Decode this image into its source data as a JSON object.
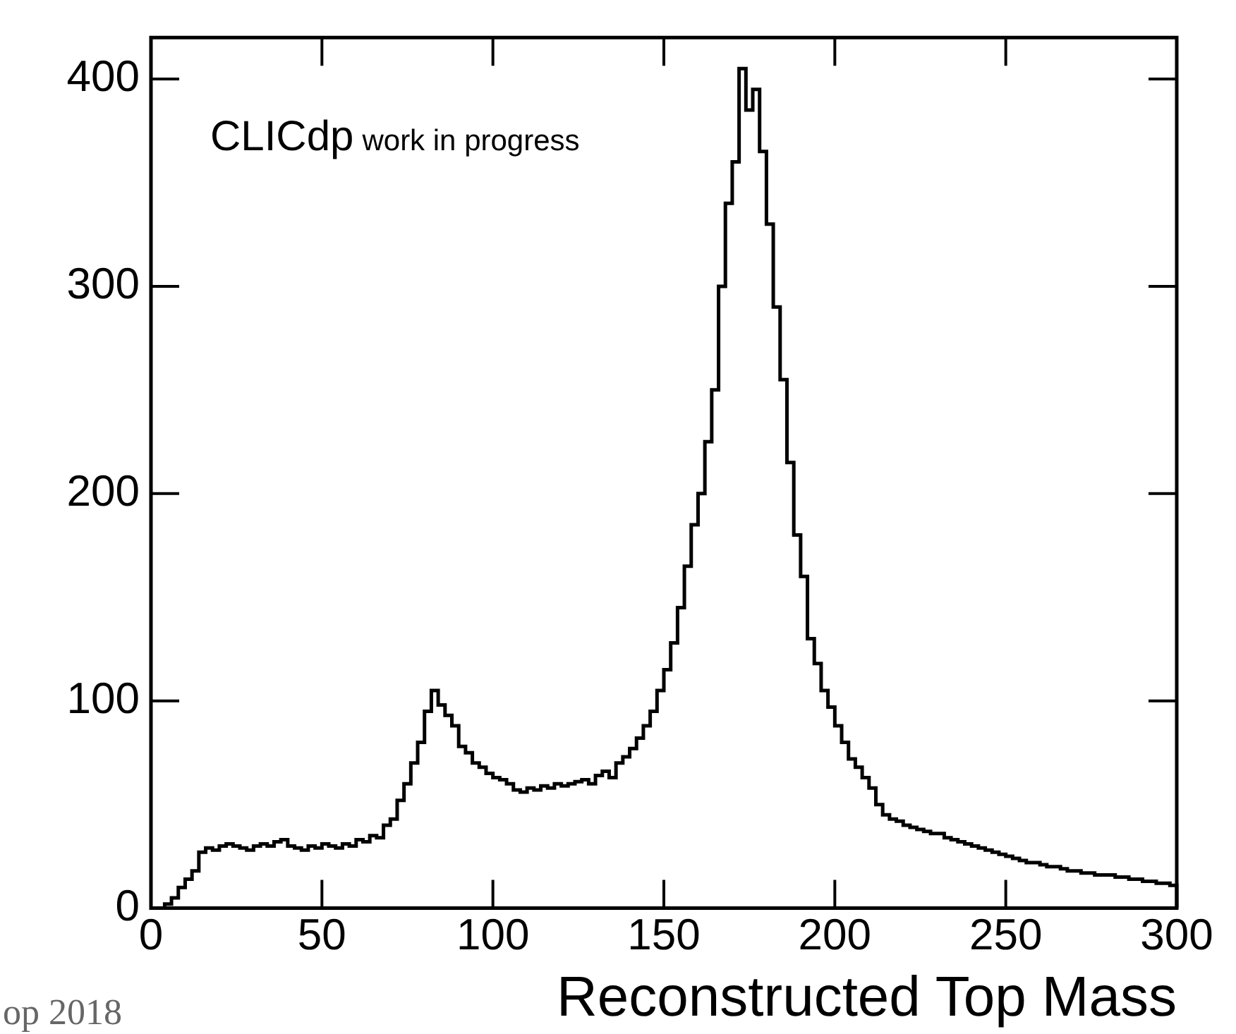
{
  "chart_data": {
    "type": "histogram",
    "xlabel": "Reconstructed Top Mass",
    "annotations": [
      "CLICdp",
      "work in progress",
      "op 2018"
    ],
    "color": "#000000",
    "bins": [
      0,
      2,
      4,
      6,
      8,
      10,
      12,
      14,
      16,
      18,
      20,
      22,
      24,
      26,
      28,
      30,
      32,
      34,
      36,
      38,
      40,
      42,
      44,
      46,
      48,
      50,
      52,
      54,
      56,
      58,
      60,
      62,
      64,
      66,
      68,
      70,
      72,
      74,
      76,
      78,
      80,
      82,
      84,
      86,
      88,
      90,
      92,
      94,
      96,
      98,
      100,
      102,
      104,
      106,
      108,
      110,
      112,
      114,
      116,
      118,
      120,
      122,
      124,
      126,
      128,
      130,
      132,
      134,
      136,
      138,
      140,
      142,
      144,
      146,
      148,
      150,
      152,
      154,
      156,
      158,
      160,
      162,
      164,
      166,
      168,
      170,
      172,
      174,
      176,
      178,
      180,
      182,
      184,
      186,
      188,
      190,
      192,
      194,
      196,
      198,
      200,
      202,
      204,
      206,
      208,
      210,
      212,
      214,
      216,
      218,
      220,
      222,
      224,
      226,
      228,
      230,
      232,
      234,
      236,
      238,
      240,
      242,
      244,
      246,
      248,
      250,
      252,
      254,
      256,
      258,
      260,
      262,
      264,
      266,
      268,
      270,
      272,
      274,
      276,
      278,
      280,
      282,
      284,
      286,
      288,
      290,
      292,
      294,
      296,
      298,
      300
    ],
    "values": [
      0,
      0,
      2,
      5,
      10,
      14,
      18,
      27,
      29,
      28,
      30,
      31,
      30,
      29,
      28,
      30,
      31,
      30,
      32,
      33,
      30,
      29,
      28,
      30,
      29,
      31,
      30,
      29,
      31,
      30,
      33,
      32,
      35,
      34,
      40,
      43,
      52,
      60,
      70,
      80,
      95,
      105,
      98,
      93,
      88,
      78,
      75,
      70,
      68,
      65,
      63,
      62,
      60,
      57,
      56,
      58,
      57,
      59,
      58,
      60,
      59,
      60,
      61,
      62,
      60,
      64,
      66,
      63,
      70,
      73,
      77,
      82,
      88,
      95,
      105,
      115,
      128,
      145,
      165,
      185,
      200,
      225,
      250,
      300,
      340,
      360,
      405,
      385,
      395,
      365,
      330,
      290,
      255,
      215,
      180,
      160,
      130,
      118,
      105,
      97,
      88,
      80,
      72,
      68,
      63,
      58,
      50,
      45,
      43,
      42,
      40,
      39,
      38,
      37,
      36,
      36,
      34,
      33,
      32,
      31,
      30,
      29,
      28,
      27,
      26,
      25,
      24,
      23,
      22,
      22,
      21,
      20,
      20,
      19,
      18,
      18,
      17,
      17,
      16,
      16,
      16,
      15,
      15,
      14,
      14,
      13,
      13,
      12,
      12,
      11
    ],
    "xlim": [
      0,
      300
    ],
    "xticks": [
      0,
      50,
      100,
      150,
      200,
      250,
      300
    ],
    "ylim": [
      0,
      420
    ],
    "yticks": [
      0,
      100,
      200,
      300,
      400
    ],
    "grid": false
  }
}
